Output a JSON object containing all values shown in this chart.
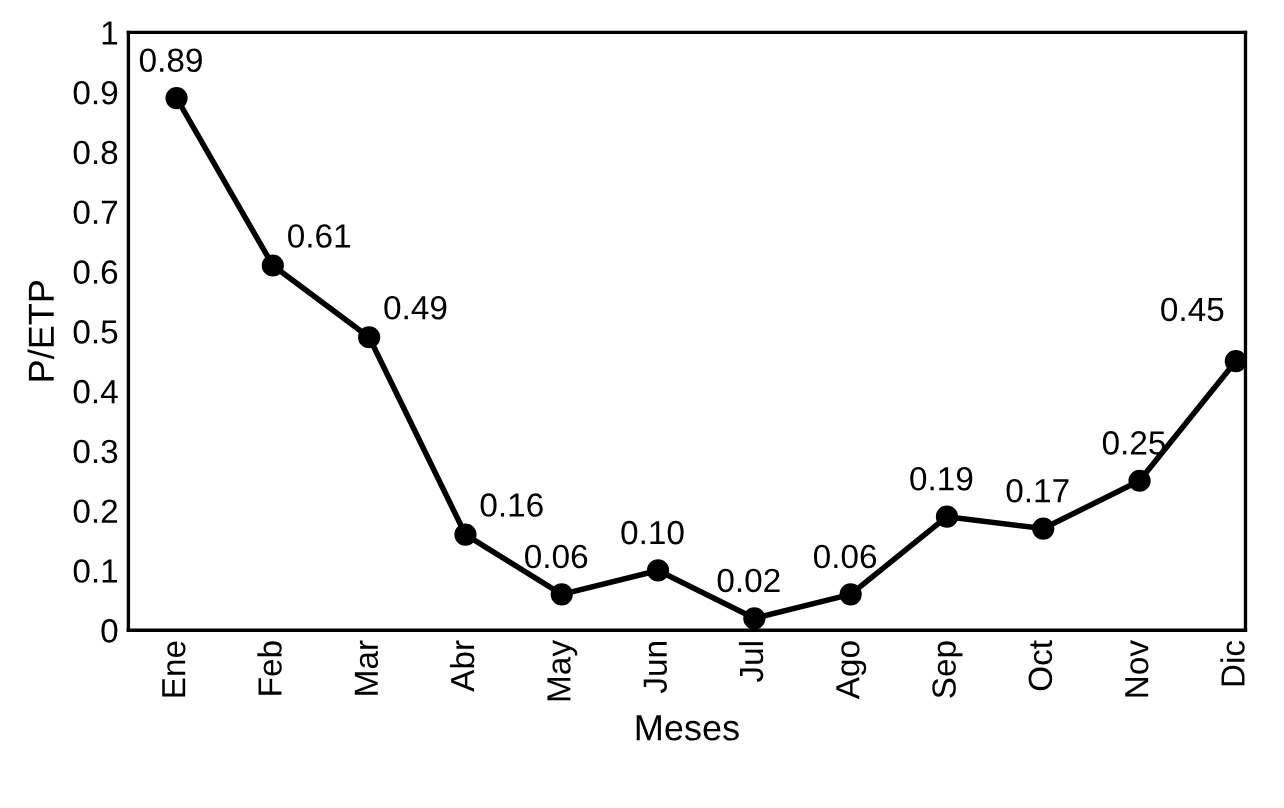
{
  "chart_data": {
    "type": "line",
    "xlabel": "Meses",
    "ylabel": "P/ETP",
    "categories": [
      "Ene",
      "Feb",
      "Mar",
      "Abr",
      "May",
      "Jun",
      "Jul",
      "Ago",
      "Sep",
      "Oct",
      "Nov",
      "Dic"
    ],
    "values": [
      0.89,
      0.61,
      0.49,
      0.16,
      0.06,
      0.1,
      0.02,
      0.06,
      0.19,
      0.17,
      0.25,
      0.45
    ],
    "value_labels": [
      "0.89",
      "0.61",
      "0.49",
      "0.16",
      "0.06",
      "0.10",
      "0.02",
      "0.06",
      "0.19",
      "0.17",
      "0.25",
      "0.45"
    ],
    "color": "#000000",
    "marker": "circle",
    "line_style": "solid",
    "ylim": [
      0,
      1
    ],
    "yticks": [
      0,
      0.1,
      0.2,
      0.3,
      0.4,
      0.5,
      0.6,
      0.7,
      0.8,
      0.9,
      1
    ],
    "grid": false,
    "legend": false
  }
}
